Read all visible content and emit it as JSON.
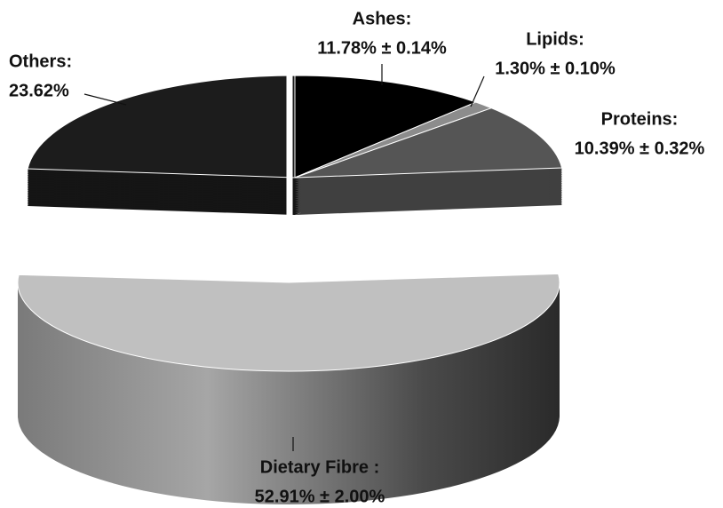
{
  "chart_data": {
    "type": "pie",
    "categories": [
      "Ashes:",
      "Lipids:",
      "Proteins:",
      "Dietary Fibre :",
      "Others:"
    ],
    "values": [
      11.78,
      1.3,
      10.39,
      52.91,
      23.62
    ],
    "value_labels": [
      "11.78% ± 0.14%",
      "1.30% ± 0.10%",
      "10.39% ± 0.32%",
      "52.91% ± 2.00%",
      "23.62%"
    ],
    "colors": [
      "#000000",
      "#8c8c8c",
      "#555555",
      "#c0c0c0",
      "#1c1c1c"
    ]
  }
}
